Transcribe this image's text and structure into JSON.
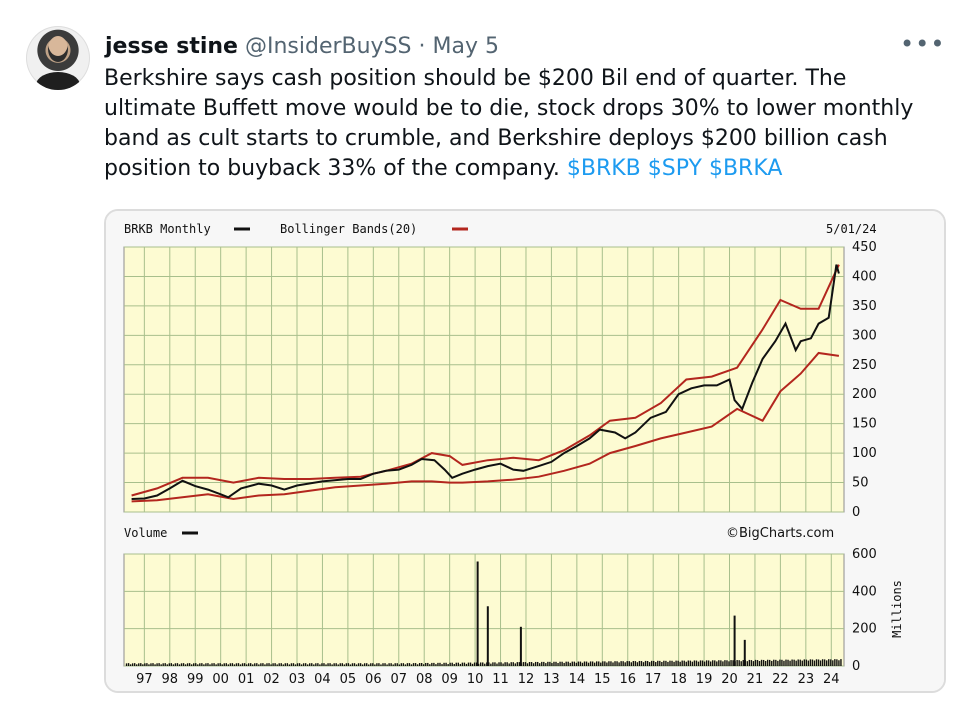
{
  "tweet": {
    "name": "jesse stine",
    "handle": "@InsiderBuySS",
    "dot": "·",
    "date": "May 5",
    "more": "•••",
    "text": "Berkshire says cash position should be $200 Bil end of quarter. The ultimate Buffett move would be to die, stock drops 30% to lower monthly band as cult starts to crumble, and Berkshire deploys $200 billion cash position to buyback 33% of the company.",
    "cashtags": [
      "$BRKB",
      "$SPY",
      "$BRKA"
    ]
  },
  "chart": {
    "header_left": "BRKB Monthly",
    "header_legend": "Bollinger Bands(20)",
    "header_date": "5/01/24",
    "volume_label": "Volume",
    "watermark": "©BigCharts.com",
    "volume_unit": "Millions",
    "colors": {
      "panel_bg": "#fdfbd2",
      "grid": "#a8bf8c",
      "price_line": "#111111",
      "band_line": "#b3261e",
      "volume_fill": "#111111",
      "cashtag": "#1d9bf0"
    }
  },
  "chart_data": {
    "type": "line",
    "price_axis": {
      "ylim": [
        0,
        450
      ],
      "ticks": [
        0,
        50,
        100,
        150,
        200,
        250,
        300,
        350,
        400,
        450
      ]
    },
    "volume_axis": {
      "ylim": [
        0,
        600
      ],
      "ticks": [
        0,
        200,
        400,
        600
      ]
    },
    "x_ticks": [
      "97",
      "98",
      "99",
      "00",
      "01",
      "02",
      "03",
      "04",
      "05",
      "06",
      "07",
      "08",
      "09",
      "10",
      "11",
      "12",
      "13",
      "14",
      "15",
      "16",
      "17",
      "18",
      "19",
      "20",
      "21",
      "22",
      "23",
      "24"
    ],
    "price_series": {
      "name": "BRKB Monthly",
      "x": [
        1996.5,
        1997.0,
        1997.5,
        1998.0,
        1998.5,
        1999.0,
        1999.5,
        2000.0,
        2000.3,
        2000.8,
        2001.5,
        2002.0,
        2002.5,
        2003.0,
        2004.0,
        2005.0,
        2005.5,
        2006.0,
        2006.5,
        2007.0,
        2007.5,
        2007.9,
        2008.4,
        2008.8,
        2009.1,
        2009.5,
        2010.0,
        2010.5,
        2011.0,
        2011.5,
        2011.9,
        2012.5,
        2013.0,
        2013.5,
        2014.0,
        2014.5,
        2014.9,
        2015.5,
        2015.9,
        2016.3,
        2016.9,
        2017.5,
        2018.0,
        2018.5,
        2019.0,
        2019.5,
        2020.0,
        2020.2,
        2020.5,
        2020.9,
        2021.3,
        2021.8,
        2022.2,
        2022.6,
        2022.8,
        2023.2,
        2023.5,
        2023.9,
        2024.2,
        2024.3
      ],
      "y": [
        22,
        23,
        28,
        40,
        53,
        44,
        38,
        30,
        25,
        40,
        48,
        45,
        38,
        45,
        52,
        56,
        56,
        65,
        70,
        72,
        80,
        90,
        88,
        72,
        58,
        65,
        72,
        78,
        82,
        72,
        70,
        78,
        85,
        100,
        112,
        125,
        140,
        135,
        125,
        135,
        160,
        170,
        200,
        210,
        215,
        215,
        225,
        190,
        175,
        220,
        260,
        290,
        320,
        275,
        290,
        295,
        320,
        330,
        420,
        405
      ]
    },
    "bollinger_series": {
      "name": "Bollinger Bands(20)",
      "upper": {
        "x": [
          1996.5,
          1997.5,
          1998.5,
          1999.5,
          2000.5,
          2001.5,
          2002.5,
          2003.5,
          2004.5,
          2005.5,
          2006.5,
          2007.5,
          2008.3,
          2009.0,
          2009.5,
          2010.5,
          2011.5,
          2012.5,
          2013.5,
          2014.5,
          2015.3,
          2016.3,
          2017.3,
          2018.3,
          2019.3,
          2020.3,
          2021.3,
          2022.0,
          2022.8,
          2023.5,
          2024.3
        ],
        "y": [
          28,
          40,
          58,
          58,
          50,
          58,
          56,
          56,
          58,
          60,
          70,
          82,
          100,
          95,
          80,
          88,
          92,
          88,
          105,
          130,
          155,
          160,
          185,
          225,
          230,
          245,
          310,
          360,
          345,
          345,
          420
        ]
      },
      "lower": {
        "x": [
          1996.5,
          1997.5,
          1998.5,
          1999.5,
          2000.5,
          2001.5,
          2002.5,
          2003.5,
          2004.5,
          2005.5,
          2006.5,
          2007.5,
          2008.3,
          2009.0,
          2009.5,
          2010.5,
          2011.5,
          2012.5,
          2013.5,
          2014.5,
          2015.3,
          2016.3,
          2017.3,
          2018.3,
          2019.3,
          2020.3,
          2021.3,
          2022.0,
          2022.8,
          2023.5,
          2024.3
        ],
        "y": [
          18,
          20,
          25,
          30,
          22,
          28,
          30,
          36,
          42,
          45,
          48,
          52,
          52,
          50,
          50,
          52,
          55,
          60,
          70,
          82,
          100,
          112,
          125,
          135,
          145,
          175,
          155,
          205,
          235,
          270,
          265
        ]
      }
    },
    "volume_series": {
      "name": "Volume",
      "spikes": [
        {
          "x": 2010.1,
          "y": 560
        },
        {
          "x": 2010.5,
          "y": 320
        },
        {
          "x": 2011.8,
          "y": 210
        },
        {
          "x": 2020.2,
          "y": 270
        },
        {
          "x": 2020.6,
          "y": 140
        }
      ]
    }
  }
}
